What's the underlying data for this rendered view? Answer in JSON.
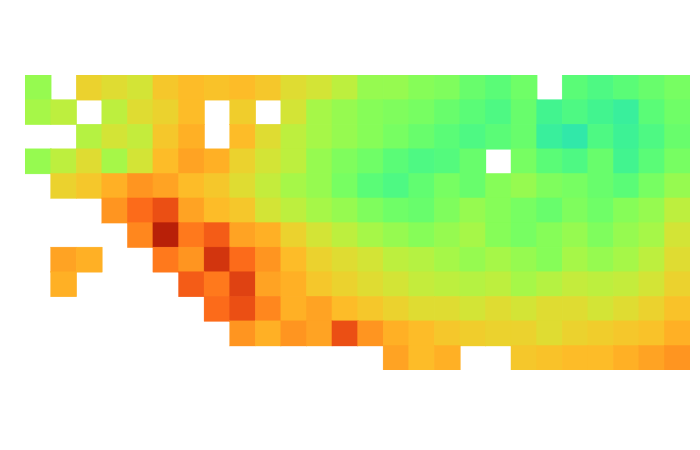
{
  "chart_data": {
    "type": "heatmap",
    "tick_labels": false,
    "xlim": [
      -0.5,
      25.5
    ],
    "ylim": [
      -0.5,
      11.5
    ],
    "zlim": [
      0,
      1
    ],
    "cells": [
      [
        0.5,
        null,
        0.62,
        0.6,
        0.58,
        0.64,
        0.66,
        0.65,
        0.66,
        0.64,
        0.6,
        0.58,
        0.55,
        0.5,
        0.5,
        0.48,
        0.47,
        0.44,
        0.42,
        0.45,
        null,
        0.42,
        0.4,
        0.42,
        0.44,
        0.46
      ],
      [
        0.52,
        0.55,
        null,
        0.55,
        0.6,
        0.62,
        0.66,
        null,
        0.63,
        null,
        0.58,
        0.52,
        0.5,
        0.48,
        0.47,
        0.46,
        0.44,
        0.42,
        0.4,
        0.44,
        0.38,
        0.4,
        0.38,
        0.36,
        0.42,
        0.45
      ],
      [
        null,
        null,
        0.54,
        0.58,
        0.56,
        0.64,
        0.68,
        null,
        0.66,
        0.6,
        0.55,
        0.52,
        0.5,
        0.48,
        0.46,
        0.44,
        0.42,
        0.4,
        0.42,
        0.44,
        0.36,
        0.34,
        0.4,
        0.37,
        0.4,
        0.44
      ],
      [
        0.5,
        0.55,
        0.6,
        0.52,
        0.58,
        0.66,
        0.7,
        0.68,
        0.62,
        0.58,
        0.55,
        0.5,
        0.47,
        0.45,
        0.42,
        0.4,
        0.41,
        0.44,
        null,
        0.46,
        0.42,
        0.4,
        0.44,
        0.38,
        0.42,
        0.46
      ],
      [
        null,
        0.62,
        0.64,
        0.68,
        0.72,
        0.7,
        0.66,
        0.64,
        0.6,
        0.56,
        0.52,
        0.5,
        0.46,
        0.42,
        0.4,
        0.43,
        0.46,
        0.44,
        0.48,
        0.5,
        0.47,
        0.46,
        0.44,
        0.42,
        0.46,
        0.5
      ],
      [
        null,
        null,
        null,
        0.72,
        0.78,
        0.82,
        0.7,
        0.66,
        0.64,
        0.58,
        0.55,
        0.52,
        0.5,
        0.47,
        0.45,
        0.44,
        0.47,
        0.5,
        0.48,
        0.46,
        0.44,
        0.47,
        0.45,
        0.48,
        0.5,
        0.55
      ],
      [
        null,
        null,
        null,
        null,
        0.74,
        0.9,
        0.76,
        0.8,
        0.7,
        0.68,
        0.62,
        0.58,
        0.55,
        0.52,
        0.5,
        0.48,
        0.5,
        0.52,
        0.48,
        0.46,
        0.48,
        0.5,
        0.47,
        0.5,
        0.52,
        0.58
      ],
      [
        null,
        0.7,
        0.68,
        null,
        null,
        0.76,
        0.72,
        0.86,
        0.78,
        0.72,
        0.66,
        0.62,
        0.6,
        0.58,
        0.55,
        0.54,
        0.52,
        0.5,
        0.52,
        0.5,
        0.48,
        0.52,
        0.5,
        0.52,
        0.55,
        0.6
      ],
      [
        null,
        0.68,
        null,
        null,
        null,
        null,
        0.8,
        0.76,
        0.84,
        0.7,
        0.68,
        0.64,
        0.62,
        0.6,
        0.58,
        0.56,
        0.55,
        0.54,
        0.55,
        0.52,
        0.54,
        0.56,
        0.55,
        0.56,
        0.58,
        0.62
      ],
      [
        null,
        null,
        null,
        null,
        null,
        null,
        null,
        0.78,
        0.82,
        0.74,
        0.68,
        0.7,
        0.66,
        0.64,
        0.62,
        0.6,
        0.6,
        0.58,
        0.6,
        0.58,
        0.6,
        0.6,
        0.58,
        0.6,
        0.62,
        0.65
      ],
      [
        null,
        null,
        null,
        null,
        null,
        null,
        null,
        null,
        0.72,
        0.68,
        0.72,
        0.7,
        0.82,
        0.72,
        0.68,
        0.66,
        0.64,
        0.63,
        0.62,
        0.62,
        0.6,
        0.62,
        0.63,
        0.64,
        0.65,
        0.68
      ],
      [
        null,
        null,
        null,
        null,
        null,
        null,
        null,
        null,
        null,
        null,
        null,
        null,
        null,
        null,
        0.7,
        0.66,
        0.68,
        null,
        null,
        0.64,
        0.65,
        0.66,
        0.66,
        0.68,
        0.7,
        0.72
      ]
    ]
  }
}
